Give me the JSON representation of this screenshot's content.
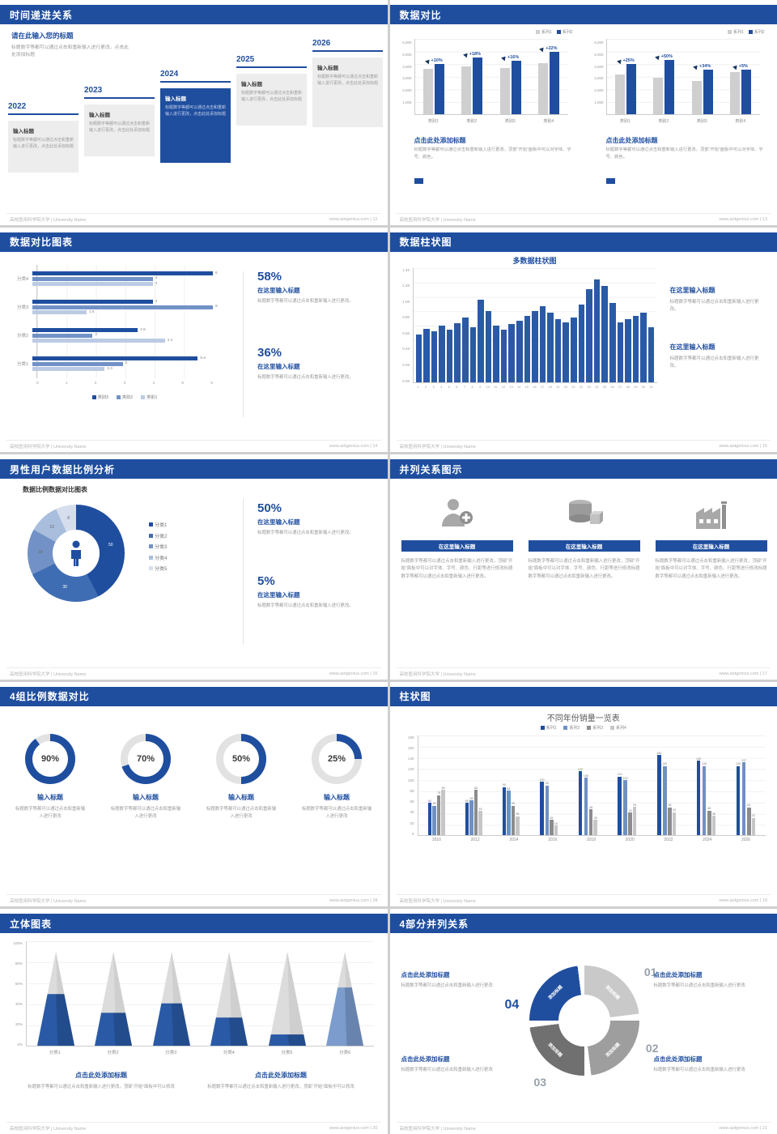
{
  "page": {
    "footer_left": "高校医用科学院大学 | University Name",
    "footer_site": "www.aotgenius.com",
    "accent_color": "#1f4e9f"
  },
  "slides": [
    {
      "page": "12",
      "title": "时间递进关系",
      "intro_title": "请在此输入您的标题",
      "intro_body": "标题数字等都可以通过点击和重新输入进行更改，点击此处添加标题",
      "steps": [
        {
          "year": "2022",
          "title": "输入标题",
          "body": "标题数字等都可以通过点击和重新输入进行更改，点击此处添加标题"
        },
        {
          "year": "2023",
          "title": "输入标题",
          "body": "标题数字等都可以通过点击和重新输入进行更改，点击此处添加标题"
        },
        {
          "year": "2024",
          "title": "输入标题",
          "body": "标题数字等都可以通过点击和重新输入进行更改，点击此处添加标题"
        },
        {
          "year": "2025",
          "title": "输入标题",
          "body": "标题数字等都可以通过点击和重新输入进行更改，点击此处添加标题"
        },
        {
          "year": "2026",
          "title": "输入标题",
          "body": "标题数字等都可以通过点击和重新输入进行更改，点击此处添加标题"
        }
      ]
    },
    {
      "page": "13",
      "title": "数据对比",
      "legend": [
        "系列1",
        "系列2"
      ],
      "caption_title": "点击此处添加标题",
      "caption_body": "标题数字等都可以通过点击和重新输入进行更改，顶部“开始”面板中可以对字体、字号、颜色。",
      "chart_data": [
        {
          "type": "bar",
          "categories": [
            "类别1",
            "类别2",
            "类别3",
            "类别4"
          ],
          "colors": [
            "#cfcfcf",
            "#1f4e9f"
          ],
          "series": [
            {
              "name": "系列1",
              "values": [
                4000,
                4200,
                4100,
                4500
              ]
            },
            {
              "name": "系列2",
              "values": [
                4400,
                5000,
                4700,
                5500
              ]
            }
          ],
          "growth_labels": [
            "+10%",
            "+18%",
            "+16%",
            "+22%"
          ],
          "ylim": [
            0,
            6000
          ],
          "yticks": [
            "6,000",
            "5,000",
            "4,000",
            "3,000",
            "2,000",
            "1,000"
          ]
        },
        {
          "type": "bar",
          "categories": [
            "类别1",
            "类别2",
            "类别3",
            "类别4"
          ],
          "colors": [
            "#cfcfcf",
            "#1f4e9f"
          ],
          "series": [
            {
              "name": "系列1",
              "values": [
                3500,
                3200,
                2900,
                3700
              ]
            },
            {
              "name": "系列2",
              "values": [
                4400,
                4800,
                3900,
                3900
              ]
            }
          ],
          "growth_labels": [
            "+25%",
            "+50%",
            "+34%",
            "+5%"
          ],
          "ylim": [
            0,
            6000
          ],
          "yticks": [
            "6,000",
            "5,000",
            "4,000",
            "3,000",
            "2,000",
            "1,000"
          ]
        }
      ]
    },
    {
      "page": "14",
      "title": "数据对比图表",
      "chart_data": {
        "type": "bar",
        "orientation": "horizontal",
        "categories": [
          "分类4",
          "分类3",
          "分类2",
          "分类1"
        ],
        "series_names": [
          "类别3",
          "类别2",
          "类别1"
        ],
        "colors": [
          "#1f4e9f",
          "#7292c7",
          "#bccbe4"
        ],
        "rows": [
          [
            6,
            4,
            4
          ],
          [
            4,
            6,
            1.8
          ],
          [
            3.5,
            2,
            4.4
          ],
          [
            5.5,
            3,
            2.4
          ]
        ],
        "xticks": [
          "0",
          "1",
          "2",
          "3",
          "4",
          "5",
          "6"
        ],
        "xlim": [
          0,
          6
        ]
      },
      "stats": [
        {
          "pct": "58%",
          "title": "在这里输入标题",
          "body": "标题数字等都可以通过点击和重新输入进行更改。"
        },
        {
          "pct": "36%",
          "title": "在这里输入标题",
          "body": "标题数字等都可以通过点击和重新输入进行更改。"
        }
      ]
    },
    {
      "page": "15",
      "title": "数据柱状图",
      "chart_title": "多数据柱状图",
      "chart_data": {
        "type": "bar",
        "color": "#2a5aa6",
        "x": [
          1,
          2,
          3,
          4,
          5,
          6,
          7,
          8,
          9,
          10,
          11,
          12,
          13,
          14,
          15,
          16,
          17,
          18,
          19,
          20,
          21,
          22,
          23,
          24,
          25,
          26,
          27,
          28,
          29,
          30,
          31
        ],
        "values": [
          0.6,
          0.68,
          0.64,
          0.72,
          0.66,
          0.75,
          0.82,
          0.7,
          1.05,
          0.9,
          0.72,
          0.66,
          0.74,
          0.78,
          0.84,
          0.9,
          0.96,
          0.88,
          0.8,
          0.76,
          0.82,
          0.98,
          1.18,
          1.3,
          1.22,
          1.0,
          0.76,
          0.8,
          0.84,
          0.88,
          0.7
        ],
        "ylim": [
          0,
          1.4
        ],
        "yticks": [
          "1.4K",
          "1.2K",
          "1.0K",
          "0.8K",
          "0.6K",
          "0.4K",
          "0.2K",
          "0.0K"
        ]
      },
      "blocks": [
        {
          "title": "在这里输入标题",
          "body": "标题数字等都可以通过点击和重新输入进行更改。"
        },
        {
          "title": "在这里输入标题",
          "body": "标题数字等都可以通过点击和重新输入进行更改。"
        }
      ]
    },
    {
      "page": "16",
      "title": "男性用户数据比例分析",
      "chart_title": "数据比例数据对比图表",
      "chart_data": {
        "type": "pie",
        "labels": [
          "分类1",
          "分类2",
          "分类3",
          "分类4",
          "分类5"
        ],
        "values": [
          50,
          30,
          18,
          12,
          8
        ],
        "colors": [
          "#1f4e9f",
          "#3f6db3",
          "#7292c7",
          "#a9bedd",
          "#d6deee"
        ]
      },
      "stats": [
        {
          "pct": "50%",
          "title": "在这里输入标题",
          "body": "标题数字等都可以通过点击和重新输入进行更改。"
        },
        {
          "pct": "5%",
          "title": "在这里输入标题",
          "body": "标题数字等都可以通过点击和重新输入进行更改。"
        }
      ]
    },
    {
      "page": "17",
      "title": "并列关系图示",
      "columns": [
        {
          "icon": "medical-person-icon",
          "button": "在这里输入标题",
          "body": "标题数字等都可以通过点击和重新输入进行更改，顶部“开始”面板中可以对字体、字号、颜色、行距等进行修改标题数字等都可以通过点击和重新输入进行更改。"
        },
        {
          "icon": "storage-cylinder-icon",
          "button": "在这里输入标题",
          "body": "标题数字等都可以通过点击和重新输入进行更改，顶部“开始”面板中可以对字体、字号、颜色、行距等进行修改标题数字等都可以通过点击和重新输入进行更改。"
        },
        {
          "icon": "building-icon",
          "button": "在这里输入标题",
          "body": "标题数字等都可以通过点击和重新输入进行更改，顶部“开始”面板中可以对字体、字号、颜色、行距等进行修改标题数字等都可以通过点击和重新输入进行更改。"
        }
      ]
    },
    {
      "page": "18",
      "title": "4组比例数据对比",
      "gauge_color": "#1f4e9f",
      "gauge_track": "#e2e2e2",
      "gauges": [
        {
          "pct": 90,
          "label": "90%",
          "title": "输入标题",
          "body": "标题数字等都可以通过点击和重新输入进行更改"
        },
        {
          "pct": 70,
          "label": "70%",
          "title": "输入标题",
          "body": "标题数字等都可以通过点击和重新输入进行更改"
        },
        {
          "pct": 50,
          "label": "50%",
          "title": "输入标题",
          "body": "标题数字等都可以通过点击和重新输入进行更改"
        },
        {
          "pct": 25,
          "label": "25%",
          "title": "输入标题",
          "body": "标题数字等都可以通过点击和重新输入进行更改"
        }
      ]
    },
    {
      "page": "19",
      "title": "柱状图",
      "chart_title": "不同年份销量一览表",
      "chart_data": {
        "type": "bar",
        "legend": [
          "系列1",
          "系列2",
          "系列3",
          "系列4"
        ],
        "colors": [
          "#1f4e9f",
          "#6e91c5",
          "#8c8c8c",
          "#c6c6c6"
        ],
        "categories": [
          "2010",
          "2012",
          "2014",
          "2016",
          "2018",
          "2020",
          "2022",
          "2024",
          "2026"
        ],
        "series": [
          {
            "name": "系列1",
            "values": [
              60,
              60,
              90,
              100,
              120,
              110,
              150,
              140,
              130
            ]
          },
          {
            "name": "系列2",
            "values": [
              55,
              65,
              83,
              93,
              108,
              103,
              130,
              130,
              137
            ]
          },
          {
            "name": "系列3",
            "values": [
              75,
              85,
              55,
              28,
              48,
              42,
              52,
              46,
              52
            ]
          },
          {
            "name": "系列4",
            "values": [
              85,
              45,
              35,
              18,
              28,
              53,
              43,
              36,
              32
            ]
          }
        ],
        "ylim": [
          0,
          180
        ],
        "yticks": [
          "180",
          "160",
          "140",
          "120",
          "100",
          "80",
          "60",
          "40",
          "20",
          "0"
        ]
      }
    },
    {
      "page": "20",
      "title": "立体图表",
      "chart_data": {
        "type": "cone",
        "categories": [
          "分类1",
          "分类2",
          "分类3",
          "分类4",
          "分类5",
          "分类6"
        ],
        "fill_pct": [
          55,
          35,
          45,
          30,
          12,
          62
        ],
        "fill_colors": [
          "#2a5aa6",
          "#2a5aa6",
          "#2a5aa6",
          "#2a5aa6",
          "#2a5aa6",
          "#7b9ccd"
        ],
        "cone_color": "#dcdcdc",
        "yticks": [
          "100%",
          "80%",
          "60%",
          "40%",
          "20%",
          "0%"
        ]
      },
      "captions": [
        {
          "title": "点击此处添加标题",
          "body": "标题数字等都可以通过点击和重新输入进行更改，顶部“开始”面板中可以修改"
        },
        {
          "title": "点击此处添加标题",
          "body": "标题数字等都可以通过点击和重新输入进行更改，顶部“开始”面板中可以修改"
        }
      ]
    },
    {
      "page": "21",
      "title": "4部分并列关系",
      "segment_label": "添加标题",
      "segment_colors": [
        "#1f4e9f",
        "#c9c9c9",
        "#9e9e9e",
        "#707070"
      ],
      "numbers": [
        "01",
        "02",
        "03",
        "04"
      ],
      "blocks": [
        {
          "title": "点击此处添加标题",
          "body": "标题数字等都可以通过点击和重新输入进行更改"
        },
        {
          "title": "点击此处添加标题",
          "body": "标题数字等都可以通过点击和重新输入进行更改"
        },
        {
          "title": "点击此处添加标题",
          "body": "标题数字等都可以通过点击和重新输入进行更改"
        },
        {
          "title": "点击此处添加标题",
          "body": "标题数字等都可以通过点击和重新输入进行更改"
        }
      ]
    }
  ]
}
